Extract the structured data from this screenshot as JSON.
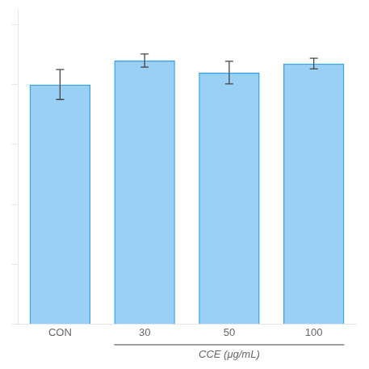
{
  "chart_data": {
    "type": "bar",
    "categories": [
      "CON",
      "30",
      "50",
      "100"
    ],
    "values": [
      0.8,
      0.88,
      0.84,
      0.87
    ],
    "errors": [
      0.05,
      0.022,
      0.038,
      0.018
    ],
    "ylim": [
      0,
      1.05
    ],
    "yticks": [
      0.0,
      0.2,
      0.4,
      0.6,
      0.8,
      1.0
    ],
    "grid": false,
    "tick_labels": "x",
    "annotations": [
      {
        "text": "CCE (μg/mL)",
        "categories": [
          "30",
          "50",
          "100"
        ]
      }
    ]
  }
}
